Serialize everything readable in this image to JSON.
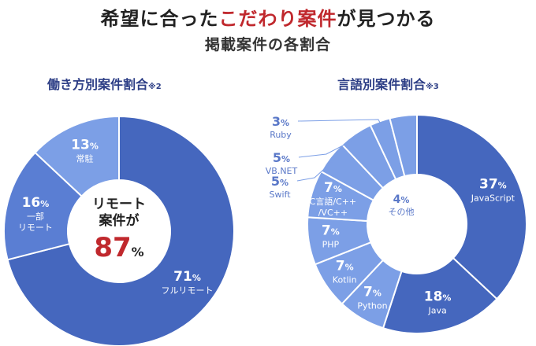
{
  "header": {
    "title_pre": "希望に合った",
    "title_accent": "こだわり案件",
    "title_post": "が見つかる",
    "subtitle": "掲載案件の各割合"
  },
  "colors": {
    "accent_red": "#c0282d",
    "navy": "#2d3e86",
    "slice_dark": "#4567be",
    "slice_mid": "#5a7ed3",
    "slice_light": "#7c9fe6",
    "label_blue": "#5a78c8"
  },
  "chart_data": [
    {
      "type": "pie",
      "title": "働き方別案件割合",
      "title_note": "※2",
      "center": {
        "line1": "リモート",
        "line2": "案件が",
        "value": "87",
        "unit": "%"
      },
      "slices": [
        {
          "label": "フルリモート",
          "value": 71,
          "color": "#4567be"
        },
        {
          "label": "一部 リモート",
          "label_line1": "一部",
          "label_line2": "リモート",
          "value": 16,
          "color": "#5a7ed3"
        },
        {
          "label": "常駐",
          "value": 13,
          "color": "#7c9fe6"
        }
      ]
    },
    {
      "type": "pie",
      "title": "言語別案件割合",
      "title_note": "※3",
      "slices": [
        {
          "label": "JavaScript",
          "value": 37,
          "color": "#4567be"
        },
        {
          "label": "Java",
          "value": 18,
          "color": "#4567be"
        },
        {
          "label": "Python",
          "value": 7,
          "color": "#7c9fe6"
        },
        {
          "label": "Kotlin",
          "value": 7,
          "color": "#7c9fe6"
        },
        {
          "label": "PHP",
          "value": 7,
          "color": "#7c9fe6"
        },
        {
          "label": "C言語/C++ /VC++",
          "label_line1": "C言語/C++",
          "label_line2": "/VC++",
          "value": 7,
          "color": "#7c9fe6"
        },
        {
          "label": "Swift",
          "value": 5,
          "color": "#7c9fe6"
        },
        {
          "label": "VB.NET",
          "value": 5,
          "color": "#7c9fe6"
        },
        {
          "label": "Ruby",
          "value": 3,
          "color": "#7c9fe6"
        },
        {
          "label": "その他",
          "value": 4,
          "color": "#7c9fe6"
        }
      ]
    }
  ]
}
